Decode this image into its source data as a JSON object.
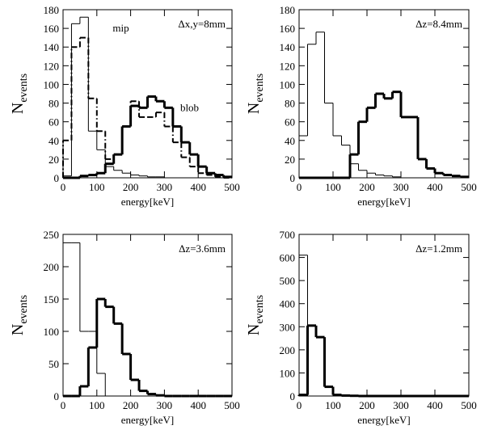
{
  "chart_data": [
    {
      "type": "histogram",
      "annotation": "Δx,y=8mm",
      "xlabel": "energy[keV]",
      "ylabel": "N",
      "ylabel_sub": "events",
      "bins": [
        0,
        25,
        50,
        75,
        100,
        125,
        150,
        175,
        200,
        225,
        250,
        275,
        300,
        325,
        350,
        375,
        400,
        425,
        450,
        475,
        500
      ],
      "xlim": [
        0,
        500
      ],
      "xticks": [
        0,
        100,
        200,
        300,
        400,
        500
      ],
      "ylim": [
        0,
        180
      ],
      "yticks": [
        0,
        20,
        40,
        60,
        80,
        100,
        120,
        140,
        160,
        180
      ],
      "series": [
        {
          "name": "mip",
          "color": "#000000",
          "line_width": 1,
          "values": [
            2,
            165,
            172,
            50,
            30,
            12,
            8,
            5,
            3,
            2,
            1,
            1,
            0,
            0,
            0,
            0,
            0,
            0,
            0,
            0
          ]
        },
        {
          "color": "#000000",
          "line_width": 2,
          "dash": true,
          "values": [
            40,
            140,
            150,
            85,
            50,
            20,
            25,
            55,
            82,
            65,
            65,
            70,
            55,
            38,
            22,
            12,
            5,
            3,
            1,
            0
          ]
        },
        {
          "name": "blob",
          "color": "#000000",
          "line_width": 3,
          "values": [
            0,
            0,
            2,
            3,
            5,
            15,
            25,
            55,
            77,
            75,
            87,
            82,
            75,
            55,
            38,
            25,
            12,
            5,
            3,
            1
          ]
        }
      ]
    },
    {
      "type": "histogram",
      "annotation": "Δz=8.4mm",
      "xlabel": "energy[keV]",
      "ylabel": "N",
      "ylabel_sub": "events",
      "bins": [
        0,
        25,
        50,
        75,
        100,
        125,
        150,
        175,
        200,
        225,
        250,
        275,
        300,
        325,
        350,
        375,
        400,
        425,
        450,
        475,
        500
      ],
      "xlim": [
        0,
        500
      ],
      "xticks": [
        0,
        100,
        200,
        300,
        400,
        500
      ],
      "ylim": [
        0,
        180
      ],
      "yticks": [
        0,
        20,
        40,
        60,
        80,
        100,
        120,
        140,
        160,
        180
      ],
      "series": [
        {
          "color": "#000000",
          "line_width": 1,
          "values": [
            45,
            143,
            156,
            80,
            45,
            35,
            15,
            8,
            5,
            3,
            2,
            1,
            0,
            0,
            0,
            0,
            0,
            0,
            0,
            0
          ]
        },
        {
          "color": "#000000",
          "line_width": 3,
          "values": [
            0,
            0,
            0,
            0,
            0,
            0,
            25,
            60,
            75,
            90,
            85,
            92,
            65,
            65,
            20,
            10,
            5,
            3,
            2,
            1
          ]
        }
      ]
    },
    {
      "type": "histogram",
      "annotation": "Δz=3.6mm",
      "xlabel": "energy[keV]",
      "ylabel": "N",
      "ylabel_sub": "events",
      "bins": [
        0,
        25,
        50,
        75,
        100,
        125,
        150,
        175,
        200,
        225,
        250,
        275,
        300,
        325,
        350,
        375,
        400,
        425,
        450,
        475,
        500
      ],
      "xlim": [
        0,
        500
      ],
      "xticks": [
        0,
        100,
        200,
        300,
        400,
        500
      ],
      "ylim": [
        0,
        250
      ],
      "yticks": [
        0,
        50,
        100,
        150,
        200,
        250
      ],
      "series": [
        {
          "color": "#000000",
          "line_width": 1,
          "values": [
            237,
            237,
            100,
            100,
            35,
            0,
            0,
            0,
            0,
            0,
            0,
            0,
            0,
            0,
            0,
            0,
            0,
            0,
            0,
            0
          ]
        },
        {
          "color": "#000000",
          "line_width": 3,
          "values": [
            0,
            0,
            15,
            75,
            150,
            138,
            112,
            65,
            25,
            8,
            3,
            1,
            0,
            0,
            0,
            0,
            0,
            0,
            0,
            0
          ]
        }
      ]
    },
    {
      "type": "histogram",
      "annotation": "Δz=1.2mm",
      "xlabel": "energy[keV]",
      "ylabel": "N",
      "ylabel_sub": "events",
      "bins": [
        0,
        25,
        50,
        75,
        100,
        125,
        150,
        175,
        200,
        225,
        250,
        275,
        300,
        325,
        350,
        375,
        400,
        425,
        450,
        475,
        500
      ],
      "xlim": [
        0,
        500
      ],
      "xticks": [
        0,
        100,
        200,
        300,
        400,
        500
      ],
      "ylim": [
        0,
        700
      ],
      "yticks": [
        0,
        100,
        200,
        300,
        400,
        500,
        600,
        700
      ],
      "series": [
        {
          "color": "#000000",
          "line_width": 1,
          "values": [
            610,
            0,
            0,
            0,
            0,
            0,
            0,
            0,
            0,
            0,
            0,
            0,
            0,
            0,
            0,
            0,
            0,
            0,
            0,
            0
          ]
        },
        {
          "color": "#000000",
          "line_width": 3,
          "values": [
            5,
            305,
            255,
            40,
            5,
            2,
            1,
            0,
            0,
            0,
            0,
            0,
            0,
            0,
            0,
            0,
            0,
            0,
            0,
            0
          ]
        }
      ]
    }
  ]
}
